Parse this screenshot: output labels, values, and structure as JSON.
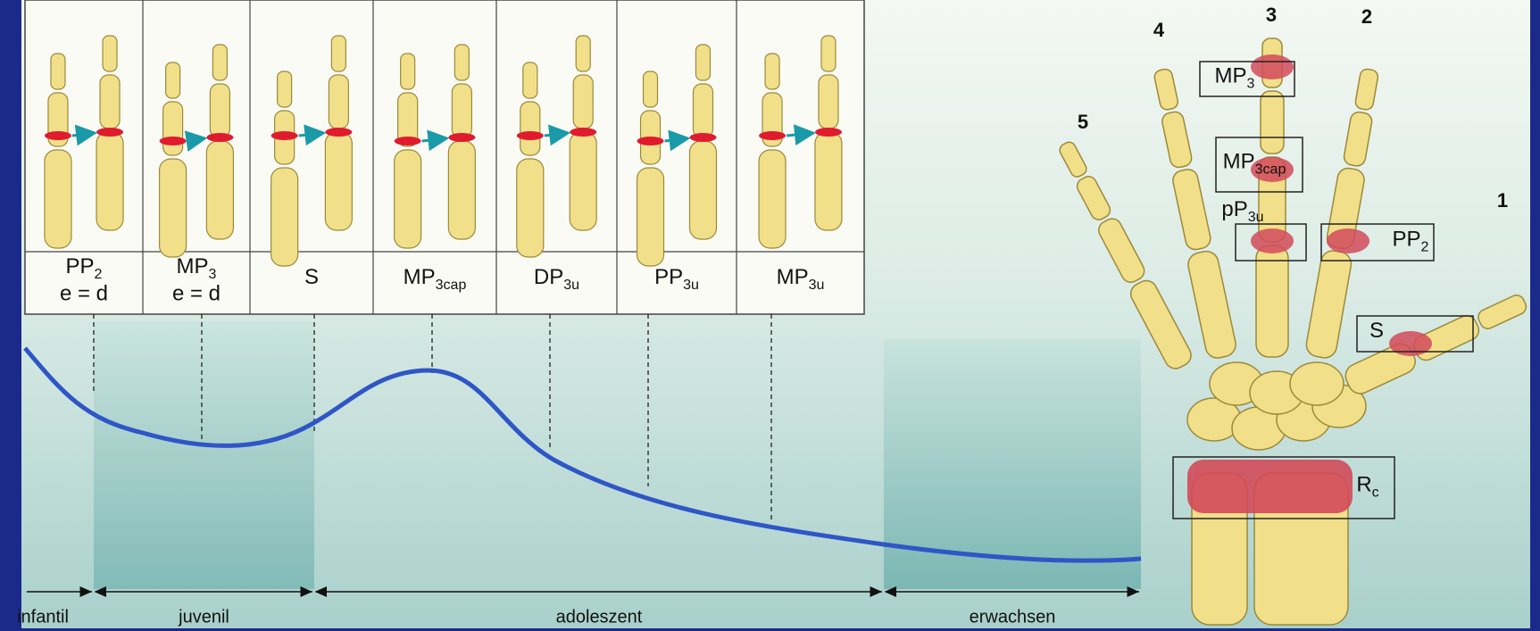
{
  "panels": [
    {
      "name": "PP",
      "sub": "2",
      "line2": "e = d"
    },
    {
      "name": "MP",
      "sub": "3",
      "line2": "e = d"
    },
    {
      "name": "S"
    },
    {
      "name": "MP",
      "sub": "3cap"
    },
    {
      "name": "DP",
      "sub": "3u"
    },
    {
      "name": "PP",
      "sub": "3u"
    },
    {
      "name": "MP",
      "sub": "3u"
    }
  ],
  "phases": [
    "infantil",
    "juvenil",
    "adoleszent",
    "erwachsen"
  ],
  "hand": {
    "fingers": [
      "1",
      "2",
      "3",
      "4",
      "5"
    ],
    "boxes": [
      {
        "name": "MP",
        "sub": "3"
      },
      {
        "name": "MP",
        "sub": "3cap"
      },
      {
        "name": "pP",
        "sub": "3u"
      },
      {
        "name": "PP",
        "sub": "2"
      },
      {
        "name": "S"
      },
      {
        "name": "R",
        "sub": "c"
      }
    ]
  }
}
